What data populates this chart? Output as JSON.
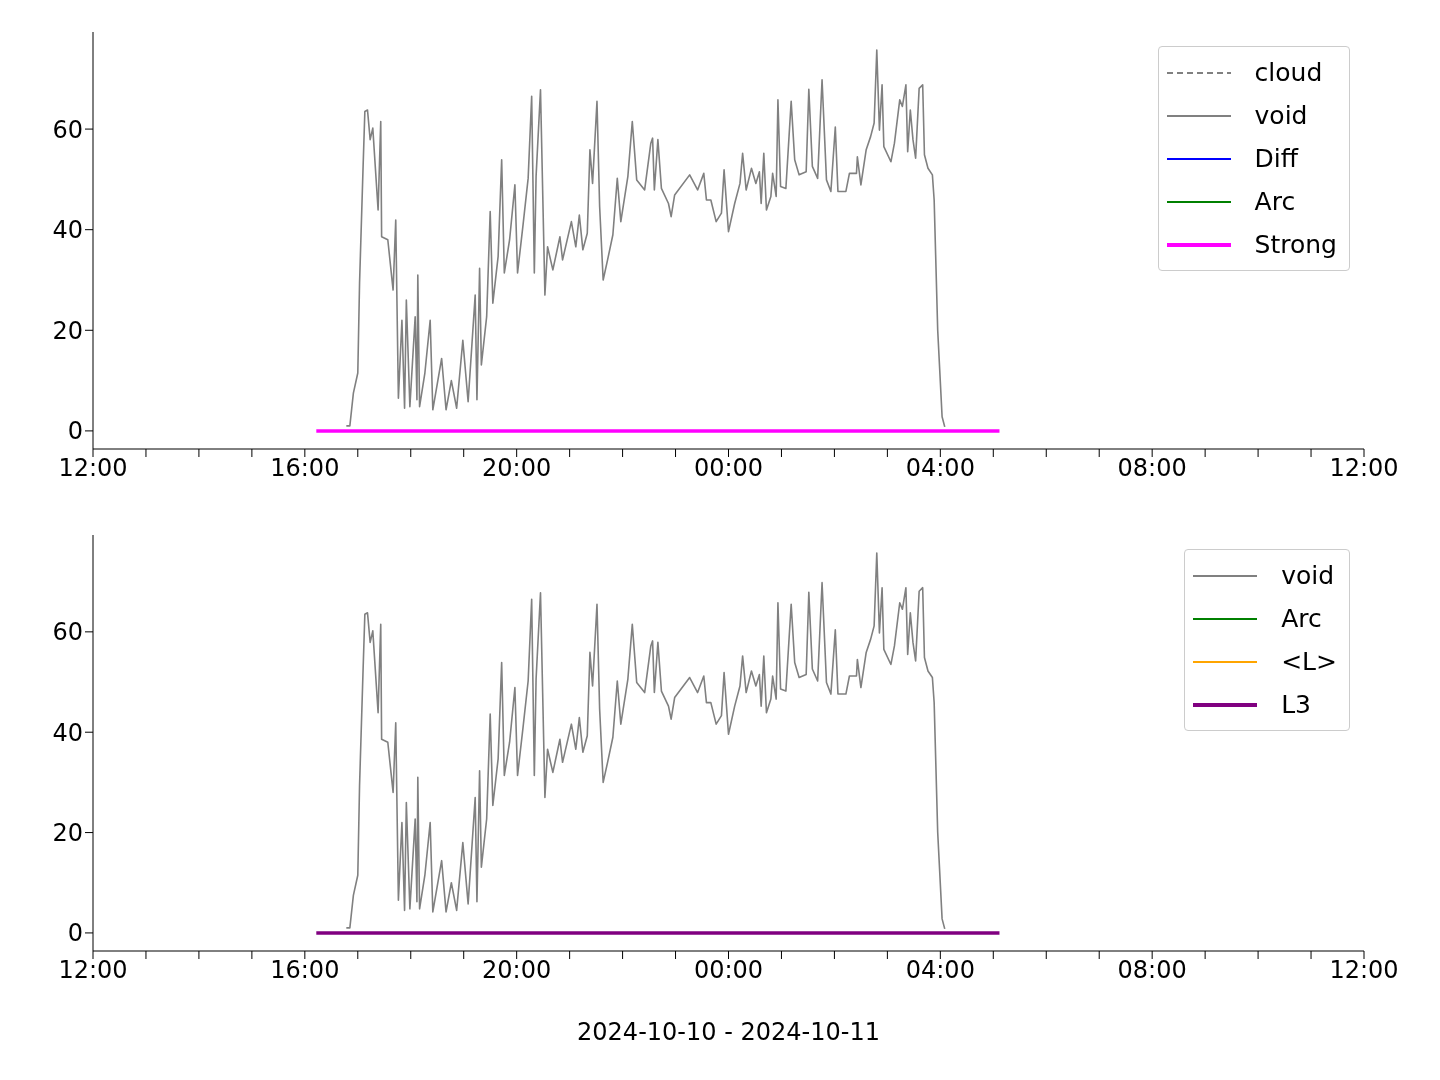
{
  "chart_data": [
    {
      "type": "line",
      "xlim": [
        "2024-10-10T12:00",
        "2024-10-11T12:00"
      ],
      "xticks": [
        {
          "value": "2024-10-10T12:00",
          "label": "12:00"
        },
        {
          "value": "2024-10-10T13:00",
          "label": null
        },
        {
          "value": "2024-10-10T14:00",
          "label": null
        },
        {
          "value": "2024-10-10T15:00",
          "label": null
        },
        {
          "value": "2024-10-10T16:00",
          "label": "16:00"
        },
        {
          "value": "2024-10-10T17:00",
          "label": null
        },
        {
          "value": "2024-10-10T18:00",
          "label": null
        },
        {
          "value": "2024-10-10T19:00",
          "label": null
        },
        {
          "value": "2024-10-10T20:00",
          "label": "20:00"
        },
        {
          "value": "2024-10-10T21:00",
          "label": null
        },
        {
          "value": "2024-10-10T22:00",
          "label": null
        },
        {
          "value": "2024-10-10T23:00",
          "label": null
        },
        {
          "value": "2024-10-11T00:00",
          "label": "00:00"
        },
        {
          "value": "2024-10-11T01:00",
          "label": null
        },
        {
          "value": "2024-10-11T02:00",
          "label": null
        },
        {
          "value": "2024-10-11T03:00",
          "label": null
        },
        {
          "value": "2024-10-11T04:00",
          "label": "04:00"
        },
        {
          "value": "2024-10-11T05:00",
          "label": null
        },
        {
          "value": "2024-10-11T06:00",
          "label": null
        },
        {
          "value": "2024-10-11T07:00",
          "label": null
        },
        {
          "value": "2024-10-11T08:00",
          "label": "08:00"
        },
        {
          "value": "2024-10-11T09:00",
          "label": null
        },
        {
          "value": "2024-10-11T10:00",
          "label": null
        },
        {
          "value": "2024-10-11T11:00",
          "label": null
        },
        {
          "value": "2024-10-11T12:00",
          "label": "12:00"
        }
      ],
      "ylim": [
        -3.6,
        79.3
      ],
      "yticks": [
        0,
        20,
        40,
        60
      ],
      "grid": false,
      "legend": "top right",
      "marker": "none",
      "series": [
        {
          "name": "cloud",
          "color": "#808080",
          "line_style": "dashed"
        },
        {
          "name": "void",
          "color": "#808080",
          "x": [
            "2024-10-10T16:47",
            "2024-10-10T16:51",
            "2024-10-10T16:55",
            "2024-10-10T17:00",
            "2024-10-10T17:02",
            "2024-10-10T17:06",
            "2024-10-10T17:08",
            "2024-10-10T17:11",
            "2024-10-10T17:14",
            "2024-10-10T17:17",
            "2024-10-10T17:23",
            "2024-10-10T17:26",
            "2024-10-10T17:27",
            "2024-10-10T17:34",
            "2024-10-10T17:40",
            "2024-10-10T17:43",
            "2024-10-10T17:46",
            "2024-10-10T17:50",
            "2024-10-10T17:53",
            "2024-10-10T17:55",
            "2024-10-10T17:59",
            "2024-10-10T18:05",
            "2024-10-10T18:07",
            "2024-10-10T18:08",
            "2024-10-10T18:10",
            "2024-10-10T18:16",
            "2024-10-10T18:22",
            "2024-10-10T18:25",
            "2024-10-10T18:35",
            "2024-10-10T18:40",
            "2024-10-10T18:46",
            "2024-10-10T18:52",
            "2024-10-10T18:59",
            "2024-10-10T19:05",
            "2024-10-10T19:13",
            "2024-10-10T19:15",
            "2024-10-10T19:18",
            "2024-10-10T19:20",
            "2024-10-10T19:26",
            "2024-10-10T19:30",
            "2024-10-10T19:33",
            "2024-10-10T19:39",
            "2024-10-10T19:43",
            "2024-10-10T19:46",
            "2024-10-10T19:52",
            "2024-10-10T19:58",
            "2024-10-10T20:01",
            "2024-10-10T20:07",
            "2024-10-10T20:13",
            "2024-10-10T20:17",
            "2024-10-10T20:20",
            "2024-10-10T20:22",
            "2024-10-10T20:27",
            "2024-10-10T20:32",
            "2024-10-10T20:35",
            "2024-10-10T20:41",
            "2024-10-10T20:49",
            "2024-10-10T20:52",
            "2024-10-10T21:02",
            "2024-10-10T21:07",
            "2024-10-10T21:11",
            "2024-10-10T21:15",
            "2024-10-10T21:20",
            "2024-10-10T21:23",
            "2024-10-10T21:26",
            "2024-10-10T21:31",
            "2024-10-10T21:34",
            "2024-10-10T21:38",
            "2024-10-10T21:43",
            "2024-10-10T21:49",
            "2024-10-10T21:54",
            "2024-10-10T21:58",
            "2024-10-10T22:06",
            "2024-10-10T22:11",
            "2024-10-10T22:16",
            "2024-10-10T22:25",
            "2024-10-10T22:32",
            "2024-10-10T22:34",
            "2024-10-10T22:36",
            "2024-10-10T22:40",
            "2024-10-10T22:44",
            "2024-10-10T22:52",
            "2024-10-10T22:55",
            "2024-10-10T22:59",
            "2024-10-10T23:16",
            "2024-10-10T23:25",
            "2024-10-10T23:32",
            "2024-10-10T23:35",
            "2024-10-10T23:40",
            "2024-10-10T23:46",
            "2024-10-10T23:52",
            "2024-10-10T23:55",
            "2024-10-11T00:00",
            "2024-10-11T00:07",
            "2024-10-11T00:13",
            "2024-10-11T00:16",
            "2024-10-11T00:20",
            "2024-10-11T00:26",
            "2024-10-11T00:31",
            "2024-10-11T00:35",
            "2024-10-11T00:37",
            "2024-10-11T00:40",
            "2024-10-11T00:43",
            "2024-10-11T00:48",
            "2024-10-11T00:50",
            "2024-10-11T00:54",
            "2024-10-11T00:56",
            "2024-10-11T00:59",
            "2024-10-11T01:05",
            "2024-10-11T01:11",
            "2024-10-11T01:15",
            "2024-10-11T01:20",
            "2024-10-11T01:28",
            "2024-10-11T01:31",
            "2024-10-11T01:35",
            "2024-10-11T01:41",
            "2024-10-11T01:46",
            "2024-10-11T01:51",
            "2024-10-11T01:56",
            "2024-10-11T02:01",
            "2024-10-11T02:04",
            "2024-10-11T02:13",
            "2024-10-11T02:17",
            "2024-10-11T02:25",
            "2024-10-11T02:26",
            "2024-10-11T02:30",
            "2024-10-11T02:36",
            "2024-10-11T02:41",
            "2024-10-11T02:45",
            "2024-10-11T02:48",
            "2024-10-11T02:51",
            "2024-10-11T02:54",
            "2024-10-11T02:56",
            "2024-10-11T03:04",
            "2024-10-11T03:08",
            "2024-10-11T03:14",
            "2024-10-11T03:17",
            "2024-10-11T03:21",
            "2024-10-11T03:23",
            "2024-10-11T03:26",
            "2024-10-11T03:29",
            "2024-10-11T03:32",
            "2024-10-11T03:36",
            "2024-10-11T03:40",
            "2024-10-11T03:42",
            "2024-10-11T03:46",
            "2024-10-11T03:51",
            "2024-10-11T03:53",
            "2024-10-11T03:57",
            "2024-10-11T04:02",
            "2024-10-11T04:05"
          ],
          "values": [
            1,
            1,
            7.5,
            11.5,
            29.4,
            52.5,
            63.5,
            63.8,
            57.9,
            60.2,
            43.9,
            61.5,
            38.6,
            38,
            28,
            41.9,
            6.5,
            22,
            4.5,
            26,
            4.8,
            22.7,
            6.2,
            31,
            4.8,
            11.5,
            22,
            4.2,
            14.4,
            4.2,
            10,
            4.5,
            18,
            5.8,
            27,
            6.2,
            32.3,
            13.1,
            22.7,
            43.6,
            25.4,
            34.7,
            53.9,
            31.4,
            38,
            48.9,
            31.4,
            40.6,
            50.2,
            66.5,
            31.4,
            50.6,
            67.8,
            27,
            36.6,
            32,
            38.6,
            34,
            41.6,
            36.6,
            42.9,
            36,
            39.3,
            55.9,
            49.2,
            65.5,
            44.6,
            30,
            34,
            39,
            50.2,
            41.6,
            50.6,
            61.5,
            49.9,
            47.9,
            57.2,
            58.2,
            47.9,
            57.9,
            48.2,
            45.2,
            42.6,
            46.9,
            50.9,
            47.9,
            51.2,
            45.9,
            45.9,
            41.6,
            43.3,
            51.9,
            39.6,
            45.2,
            49.2,
            55.2,
            47.9,
            52.2,
            49.2,
            51.5,
            45.2,
            55.2,
            43.9,
            46.6,
            51.2,
            46.6,
            65.8,
            48.6,
            48.2,
            65.5,
            53.9,
            50.9,
            51.5,
            67.9,
            52.6,
            50.2,
            69.8,
            49.9,
            47.6,
            60.4,
            47.6,
            47.6,
            51.2,
            51.2,
            54.5,
            48.9,
            55.9,
            58.5,
            61.2,
            75.7,
            59.8,
            68.8,
            56.5,
            53.5,
            57.2,
            65.8,
            64.5,
            68.8,
            55.5,
            63.8,
            57.9,
            54.2,
            68.1,
            68.8,
            54.9,
            52.2,
            50.9,
            45.9,
            20.1,
            2.8,
            0.8
          ]
        },
        {
          "name": "Diff",
          "color": "#0000ff"
        },
        {
          "name": "Arc",
          "color": "#008000"
        },
        {
          "name": "Strong",
          "color": "#ff00ff",
          "x": [
            "2024-10-10T16:13",
            "2024-10-11T05:07"
          ],
          "values": [
            0,
            0
          ]
        }
      ]
    },
    {
      "type": "line",
      "xlabel": "2024-10-10 - 2024-10-11",
      "xlim": [
        "2024-10-10T12:00",
        "2024-10-11T12:00"
      ],
      "xticks": [
        {
          "value": "2024-10-10T12:00",
          "label": "12:00"
        },
        {
          "value": "2024-10-10T13:00",
          "label": null
        },
        {
          "value": "2024-10-10T14:00",
          "label": null
        },
        {
          "value": "2024-10-10T15:00",
          "label": null
        },
        {
          "value": "2024-10-10T16:00",
          "label": "16:00"
        },
        {
          "value": "2024-10-10T17:00",
          "label": null
        },
        {
          "value": "2024-10-10T18:00",
          "label": null
        },
        {
          "value": "2024-10-10T19:00",
          "label": null
        },
        {
          "value": "2024-10-10T20:00",
          "label": "20:00"
        },
        {
          "value": "2024-10-10T21:00",
          "label": null
        },
        {
          "value": "2024-10-10T22:00",
          "label": null
        },
        {
          "value": "2024-10-10T23:00",
          "label": null
        },
        {
          "value": "2024-10-11T00:00",
          "label": "00:00"
        },
        {
          "value": "2024-10-11T01:00",
          "label": null
        },
        {
          "value": "2024-10-11T02:00",
          "label": null
        },
        {
          "value": "2024-10-11T03:00",
          "label": null
        },
        {
          "value": "2024-10-11T04:00",
          "label": "04:00"
        },
        {
          "value": "2024-10-11T05:00",
          "label": null
        },
        {
          "value": "2024-10-11T06:00",
          "label": null
        },
        {
          "value": "2024-10-11T07:00",
          "label": null
        },
        {
          "value": "2024-10-11T08:00",
          "label": "08:00"
        },
        {
          "value": "2024-10-11T09:00",
          "label": null
        },
        {
          "value": "2024-10-11T10:00",
          "label": null
        },
        {
          "value": "2024-10-11T11:00",
          "label": null
        },
        {
          "value": "2024-10-11T12:00",
          "label": "12:00"
        }
      ],
      "ylim": [
        -3.6,
        79.3
      ],
      "yticks": [
        0,
        20,
        40,
        60
      ],
      "grid": false,
      "legend": "top right",
      "marker": "none",
      "series": [
        {
          "name": "void",
          "color": "#808080",
          "x": [
            "2024-10-10T16:47",
            "2024-10-10T16:51",
            "2024-10-10T16:55",
            "2024-10-10T17:00",
            "2024-10-10T17:02",
            "2024-10-10T17:06",
            "2024-10-10T17:08",
            "2024-10-10T17:11",
            "2024-10-10T17:14",
            "2024-10-10T17:17",
            "2024-10-10T17:23",
            "2024-10-10T17:26",
            "2024-10-10T17:27",
            "2024-10-10T17:34",
            "2024-10-10T17:40",
            "2024-10-10T17:43",
            "2024-10-10T17:46",
            "2024-10-10T17:50",
            "2024-10-10T17:53",
            "2024-10-10T17:55",
            "2024-10-10T17:59",
            "2024-10-10T18:05",
            "2024-10-10T18:07",
            "2024-10-10T18:08",
            "2024-10-10T18:10",
            "2024-10-10T18:16",
            "2024-10-10T18:22",
            "2024-10-10T18:25",
            "2024-10-10T18:35",
            "2024-10-10T18:40",
            "2024-10-10T18:46",
            "2024-10-10T18:52",
            "2024-10-10T18:59",
            "2024-10-10T19:05",
            "2024-10-10T19:13",
            "2024-10-10T19:15",
            "2024-10-10T19:18",
            "2024-10-10T19:20",
            "2024-10-10T19:26",
            "2024-10-10T19:30",
            "2024-10-10T19:33",
            "2024-10-10T19:39",
            "2024-10-10T19:43",
            "2024-10-10T19:46",
            "2024-10-10T19:52",
            "2024-10-10T19:58",
            "2024-10-10T20:01",
            "2024-10-10T20:07",
            "2024-10-10T20:13",
            "2024-10-10T20:17",
            "2024-10-10T20:20",
            "2024-10-10T20:22",
            "2024-10-10T20:27",
            "2024-10-10T20:32",
            "2024-10-10T20:35",
            "2024-10-10T20:41",
            "2024-10-10T20:49",
            "2024-10-10T20:52",
            "2024-10-10T21:02",
            "2024-10-10T21:07",
            "2024-10-10T21:11",
            "2024-10-10T21:15",
            "2024-10-10T21:20",
            "2024-10-10T21:23",
            "2024-10-10T21:26",
            "2024-10-10T21:31",
            "2024-10-10T21:34",
            "2024-10-10T21:38",
            "2024-10-10T21:43",
            "2024-10-10T21:49",
            "2024-10-10T21:54",
            "2024-10-10T21:58",
            "2024-10-10T22:06",
            "2024-10-10T22:11",
            "2024-10-10T22:16",
            "2024-10-10T22:25",
            "2024-10-10T22:32",
            "2024-10-10T22:34",
            "2024-10-10T22:36",
            "2024-10-10T22:40",
            "2024-10-10T22:44",
            "2024-10-10T22:52",
            "2024-10-10T22:55",
            "2024-10-10T22:59",
            "2024-10-10T23:16",
            "2024-10-10T23:25",
            "2024-10-10T23:32",
            "2024-10-10T23:35",
            "2024-10-10T23:40",
            "2024-10-10T23:46",
            "2024-10-10T23:52",
            "2024-10-10T23:55",
            "2024-10-11T00:00",
            "2024-10-11T00:07",
            "2024-10-11T00:13",
            "2024-10-11T00:16",
            "2024-10-11T00:20",
            "2024-10-11T00:26",
            "2024-10-11T00:31",
            "2024-10-11T00:35",
            "2024-10-11T00:37",
            "2024-10-11T00:40",
            "2024-10-11T00:43",
            "2024-10-11T00:48",
            "2024-10-11T00:50",
            "2024-10-11T00:54",
            "2024-10-11T00:56",
            "2024-10-11T00:59",
            "2024-10-11T01:05",
            "2024-10-11T01:11",
            "2024-10-11T01:15",
            "2024-10-11T01:20",
            "2024-10-11T01:28",
            "2024-10-11T01:31",
            "2024-10-11T01:35",
            "2024-10-11T01:41",
            "2024-10-11T01:46",
            "2024-10-11T01:51",
            "2024-10-11T01:56",
            "2024-10-11T02:01",
            "2024-10-11T02:04",
            "2024-10-11T02:13",
            "2024-10-11T02:17",
            "2024-10-11T02:25",
            "2024-10-11T02:26",
            "2024-10-11T02:30",
            "2024-10-11T02:36",
            "2024-10-11T02:41",
            "2024-10-11T02:45",
            "2024-10-11T02:48",
            "2024-10-11T02:51",
            "2024-10-11T02:54",
            "2024-10-11T02:56",
            "2024-10-11T03:04",
            "2024-10-11T03:08",
            "2024-10-11T03:14",
            "2024-10-11T03:17",
            "2024-10-11T03:21",
            "2024-10-11T03:23",
            "2024-10-11T03:26",
            "2024-10-11T03:29",
            "2024-10-11T03:32",
            "2024-10-11T03:36",
            "2024-10-11T03:40",
            "2024-10-11T03:42",
            "2024-10-11T03:46",
            "2024-10-11T03:51",
            "2024-10-11T03:53",
            "2024-10-11T03:57",
            "2024-10-11T04:02",
            "2024-10-11T04:05"
          ],
          "values": [
            1,
            1,
            7.5,
            11.5,
            29.4,
            52.5,
            63.5,
            63.8,
            57.9,
            60.2,
            43.9,
            61.5,
            38.6,
            38,
            28,
            41.9,
            6.5,
            22,
            4.5,
            26,
            4.8,
            22.7,
            6.2,
            31,
            4.8,
            11.5,
            22,
            4.2,
            14.4,
            4.2,
            10,
            4.5,
            18,
            5.8,
            27,
            6.2,
            32.3,
            13.1,
            22.7,
            43.6,
            25.4,
            34.7,
            53.9,
            31.4,
            38,
            48.9,
            31.4,
            40.6,
            50.2,
            66.5,
            31.4,
            50.6,
            67.8,
            27,
            36.6,
            32,
            38.6,
            34,
            41.6,
            36.6,
            42.9,
            36,
            39.3,
            55.9,
            49.2,
            65.5,
            44.6,
            30,
            34,
            39,
            50.2,
            41.6,
            50.6,
            61.5,
            49.9,
            47.9,
            57.2,
            58.2,
            47.9,
            57.9,
            48.2,
            45.2,
            42.6,
            46.9,
            50.9,
            47.9,
            51.2,
            45.9,
            45.9,
            41.6,
            43.3,
            51.9,
            39.6,
            45.2,
            49.2,
            55.2,
            47.9,
            52.2,
            49.2,
            51.5,
            45.2,
            55.2,
            43.9,
            46.6,
            51.2,
            46.6,
            65.8,
            48.6,
            48.2,
            65.5,
            53.9,
            50.9,
            51.5,
            67.9,
            52.6,
            50.2,
            69.8,
            49.9,
            47.6,
            60.4,
            47.6,
            47.6,
            51.2,
            51.2,
            54.5,
            48.9,
            55.9,
            58.5,
            61.2,
            75.7,
            59.8,
            68.8,
            56.5,
            53.5,
            57.2,
            65.8,
            64.5,
            68.8,
            55.5,
            63.8,
            57.9,
            54.2,
            68.1,
            68.8,
            54.9,
            52.2,
            50.9,
            45.9,
            20.1,
            2.8,
            0.8
          ]
        },
        {
          "name": "Arc",
          "color": "#008000"
        },
        {
          "name": "<L>",
          "color": "#ffa500"
        },
        {
          "name": "L3",
          "color": "#800080",
          "x": [
            "2024-10-10T16:13",
            "2024-10-11T05:07"
          ],
          "values": [
            0,
            0
          ]
        }
      ]
    }
  ]
}
